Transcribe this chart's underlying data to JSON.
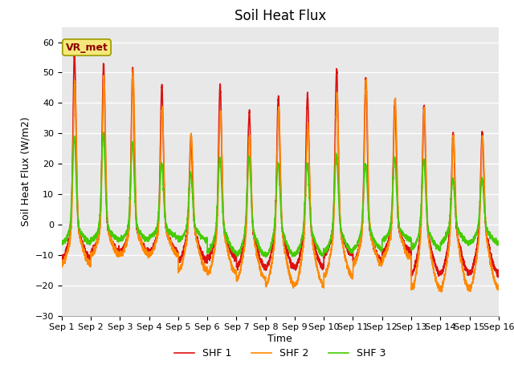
{
  "title": "Soil Heat Flux",
  "xlabel": "Time",
  "ylabel": "Soil Heat Flux (W/m2)",
  "ylim": [
    -30,
    65
  ],
  "yticks": [
    -30,
    -20,
    -10,
    0,
    10,
    20,
    30,
    40,
    50,
    60
  ],
  "xlim": [
    0,
    15
  ],
  "xtick_labels": [
    "Sep 1",
    "Sep 2",
    "Sep 3",
    "Sep 4",
    "Sep 5",
    "Sep 6",
    "Sep 7",
    "Sep 8",
    "Sep 9",
    "Sep 10",
    "Sep 11",
    "Sep 12",
    "Sep 13",
    "Sep 14",
    "Sep 15",
    "Sep 16"
  ],
  "legend_labels": [
    "SHF 1",
    "SHF 2",
    "SHF 3"
  ],
  "colors": [
    "#dd1111",
    "#ff8800",
    "#44cc00"
  ],
  "linewidths": [
    1.2,
    1.2,
    1.2
  ],
  "fig_bg_color": "#ffffff",
  "plot_bg_color": "#e8e8e8",
  "annotation_text": "VR_met",
  "title_fontsize": 12,
  "label_fontsize": 9,
  "tick_fontsize": 8,
  "legend_fontsize": 9,
  "num_days": 15,
  "pts_per_day": 288,
  "shf1_peaks": [
    57,
    53,
    51,
    46,
    29,
    46,
    37,
    42,
    43,
    51,
    48,
    41,
    39,
    30,
    30
  ],
  "shf1_troughs": [
    -11,
    -9,
    -9,
    -9,
    -12,
    -11,
    -14,
    -14,
    -14,
    -10,
    -12,
    -9,
    -16,
    -16,
    -16
  ],
  "shf2_peaks": [
    47,
    49,
    51,
    38,
    29,
    37,
    29,
    38,
    33,
    42,
    48,
    41,
    38,
    29,
    29
  ],
  "shf2_troughs": [
    -13,
    -10,
    -10,
    -10,
    -15,
    -16,
    -18,
    -20,
    -20,
    -17,
    -13,
    -11,
    -21,
    -21,
    -21
  ],
  "shf3_peaks": [
    29,
    30,
    27,
    20,
    17,
    22,
    22,
    20,
    20,
    23,
    20,
    22,
    21,
    15,
    15
  ],
  "shf3_troughs": [
    -6,
    -5,
    -5,
    -4,
    -5,
    -9,
    -10,
    -10,
    -10,
    -9,
    -8,
    -5,
    -8,
    -6,
    -6
  ]
}
